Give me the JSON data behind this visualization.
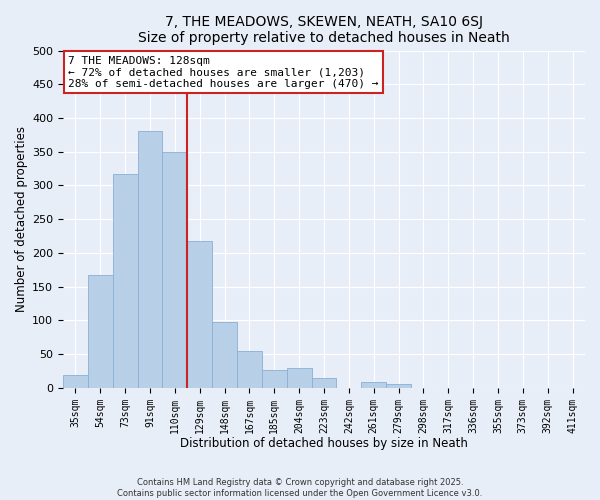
{
  "title": "7, THE MEADOWS, SKEWEN, NEATH, SA10 6SJ",
  "subtitle": "Size of property relative to detached houses in Neath",
  "xlabel": "Distribution of detached houses by size in Neath",
  "ylabel": "Number of detached properties",
  "bar_labels": [
    "35sqm",
    "54sqm",
    "73sqm",
    "91sqm",
    "110sqm",
    "129sqm",
    "148sqm",
    "167sqm",
    "185sqm",
    "204sqm",
    "223sqm",
    "242sqm",
    "261sqm",
    "279sqm",
    "298sqm",
    "317sqm",
    "336sqm",
    "355sqm",
    "373sqm",
    "392sqm",
    "411sqm"
  ],
  "bar_values": [
    19,
    167,
    317,
    380,
    350,
    217,
    97,
    54,
    26,
    30,
    14,
    0,
    8,
    6,
    0,
    0,
    0,
    0,
    0,
    0,
    0
  ],
  "bar_color": "#b8cfe8",
  "bar_edge_color": "#8aafd4",
  "vline_color": "#cc2222",
  "annotation_title": "7 THE MEADOWS: 128sqm",
  "annotation_line1": "← 72% of detached houses are smaller (1,203)",
  "annotation_line2": "28% of semi-detached houses are larger (470) →",
  "annotation_box_color": "#ffffff",
  "annotation_box_edge": "#cc2222",
  "ylim": [
    0,
    500
  ],
  "yticks": [
    0,
    50,
    100,
    150,
    200,
    250,
    300,
    350,
    400,
    450,
    500
  ],
  "footnote1": "Contains HM Land Registry data © Crown copyright and database right 2025.",
  "footnote2": "Contains public sector information licensed under the Open Government Licence v3.0.",
  "bg_color": "#e8eef8",
  "grid_color": "#ffffff"
}
